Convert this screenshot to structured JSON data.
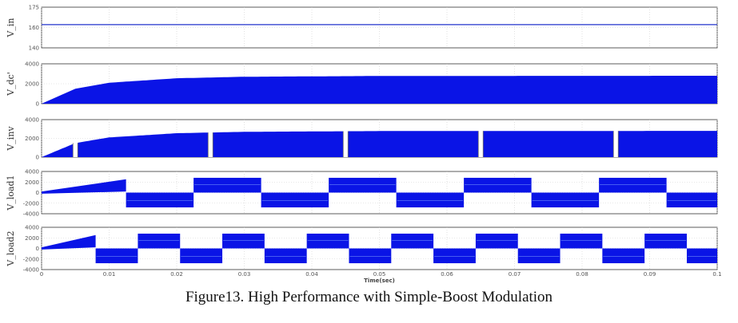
{
  "caption": "Figure13. High Performance with Simple-Boost Modulation",
  "chart_data": [
    {
      "type": "line",
      "ylabel": "V_in",
      "ylim": [
        140,
        175
      ],
      "yticks": [
        "175",
        "160",
        "140"
      ],
      "series": [
        {
          "x": [
            0,
            0.1
          ],
          "y": [
            160,
            160
          ]
        }
      ],
      "color": "#2233cc"
    },
    {
      "type": "area",
      "ylabel": "V_dc'",
      "ylim": [
        0,
        4000
      ],
      "yticks": [
        "4000",
        "2000",
        "0"
      ],
      "envelope": {
        "x": [
          0,
          0.005,
          0.01,
          0.02,
          0.03,
          0.05,
          0.1
        ],
        "upper": [
          0,
          1500,
          2100,
          2550,
          2700,
          2780,
          2800
        ],
        "lower": [
          0,
          0,
          0,
          0,
          0,
          0,
          0
        ]
      },
      "color": "#0a14e6"
    },
    {
      "type": "area",
      "ylabel": "V_inv",
      "ylim": [
        0,
        4000
      ],
      "yticks": [
        "4000",
        "2000",
        "0"
      ],
      "envelope": {
        "x": [
          0,
          0.005,
          0.01,
          0.02,
          0.03,
          0.05,
          0.1
        ],
        "upper": [
          0,
          1500,
          2100,
          2550,
          2700,
          2780,
          2800
        ],
        "lower": [
          0,
          0,
          0,
          0,
          0,
          0,
          0
        ]
      },
      "gaps": [
        0.005,
        0.025,
        0.045,
        0.065,
        0.085
      ],
      "color": "#0a14e6"
    },
    {
      "type": "area",
      "ylabel": "V_load1",
      "ylim": [
        -4000,
        4000
      ],
      "yticks": [
        "4000",
        "2000",
        "0",
        "-2000",
        "-4000"
      ],
      "period": 0.02,
      "first_transition": 0.0125,
      "amplitude": [
        1500,
        2800
      ],
      "color": "#0a14e6"
    },
    {
      "type": "area",
      "ylabel": "V_load2",
      "ylim": [
        -4000,
        4000
      ],
      "yticks": [
        "4000",
        "2000",
        "0",
        "-2000",
        "-4000"
      ],
      "period": 0.0125,
      "first_transition": 0.008,
      "amplitude": [
        1500,
        2800
      ],
      "color": "#0a14e6"
    }
  ],
  "x_axis": {
    "xlim": [
      0,
      0.1
    ],
    "ticks": [
      "0",
      "0.01",
      "0.02",
      "0.03",
      "0.04",
      "0.05",
      "0.06",
      "0.07",
      "0.08",
      "0.09",
      "0.1"
    ],
    "label": "Time(sec)"
  }
}
